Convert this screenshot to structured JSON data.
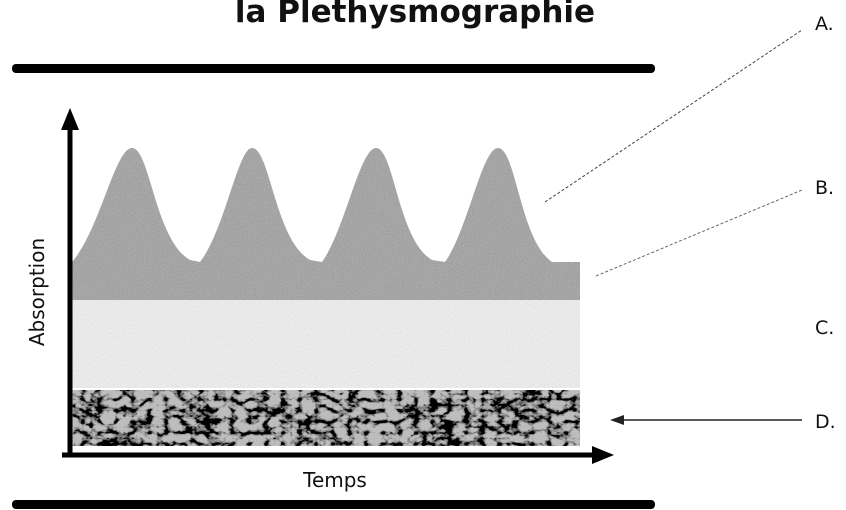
{
  "title": "la Plethysmographie",
  "axes": {
    "y_label": "Absorption",
    "x_label": "Temps"
  },
  "labels": [
    "A.",
    "B.",
    "C.",
    "D."
  ]
}
